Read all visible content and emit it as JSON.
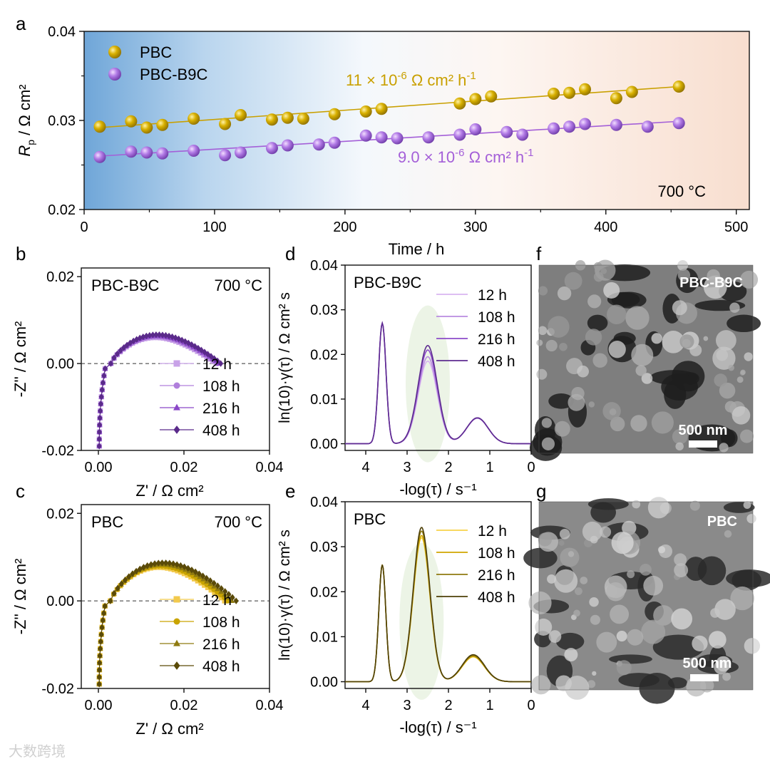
{
  "figure": {
    "watermark": "大数跨境",
    "chart_data": [
      {
        "panel": "a",
        "type": "scatter",
        "xlabel": "Time / h",
        "ylabel_main": "R",
        "ylabel_sub": "p",
        "ylabel_rest": " / Ω cm²",
        "xlim": [
          0,
          510
        ],
        "ylim": [
          0.02,
          0.04
        ],
        "xticks": [
          0,
          100,
          200,
          300,
          400,
          500
        ],
        "xtick_labels": [
          "0",
          "100",
          "200",
          "300",
          "400",
          "500"
        ],
        "yticks": [
          0.02,
          0.03,
          0.04
        ],
        "ytick_labels": [
          "0.02",
          "0.03",
          "0.04"
        ],
        "temperature": "700 °C",
        "legend": [
          "PBC",
          "PBC-B9C"
        ],
        "series": [
          {
            "name": "PBC",
            "color": "#C9A000",
            "slope_pre": "11 × 10",
            "slope_exp": "-6",
            "slope_post": " Ω cm² h",
            "slope_unit_exp": "-1",
            "fit": [
              [
                12,
                0.0292
              ],
              [
                456,
                0.0338
              ]
            ],
            "x": [
              12,
              36,
              48,
              60,
              84,
              108,
              120,
              144,
              156,
              168,
              192,
              216,
              228,
              288,
              300,
              312,
              360,
              372,
              384,
              408,
              420,
              456
            ],
            "y": [
              0.0293,
              0.0299,
              0.0292,
              0.0295,
              0.0302,
              0.0296,
              0.0306,
              0.0301,
              0.0303,
              0.0302,
              0.0307,
              0.031,
              0.0313,
              0.0319,
              0.0324,
              0.0327,
              0.033,
              0.0331,
              0.0335,
              0.0325,
              0.0332,
              0.0338
            ]
          },
          {
            "name": "PBC-B9C",
            "color": "#A45FD8",
            "slope_pre": "9.0 × 10",
            "slope_exp": "-6",
            "slope_post": " Ω cm² h",
            "slope_unit_exp": "-1",
            "fit": [
              [
                12,
                0.026
              ],
              [
                456,
                0.0299
              ]
            ],
            "x": [
              12,
              36,
              48,
              60,
              84,
              108,
              120,
              144,
              156,
              180,
              192,
              216,
              228,
              240,
              264,
              288,
              300,
              324,
              336,
              360,
              372,
              384,
              408,
              432,
              456
            ],
            "y": [
              0.0259,
              0.0265,
              0.0264,
              0.0263,
              0.0266,
              0.0261,
              0.0264,
              0.0269,
              0.0272,
              0.0273,
              0.0275,
              0.0283,
              0.0281,
              0.028,
              0.0281,
              0.0284,
              0.029,
              0.0287,
              0.0284,
              0.0291,
              0.0293,
              0.0296,
              0.0295,
              0.0293,
              0.0297
            ]
          }
        ]
      },
      {
        "panel": "b",
        "type": "scatter",
        "sample": "PBC-B9C",
        "temperature": "700 °C",
        "xlabel": "Z' / Ω cm²",
        "ylabel": "-Z'' / Ω cm²",
        "xlim": [
          -0.004,
          0.04
        ],
        "ylim": [
          -0.02,
          0.022
        ],
        "xticks": [
          0,
          0.02,
          0.04
        ],
        "xtick_labels": [
          "0.00",
          "0.02",
          "0.04"
        ],
        "yticks": [
          -0.02,
          0,
          0.02
        ],
        "ytick_labels": [
          "-0.02",
          "0.00",
          "0.02"
        ],
        "legend": [
          "12 h",
          "108 h",
          "216 h",
          "408 h"
        ],
        "markers": [
          "square",
          "circle",
          "triangle",
          "diamond"
        ],
        "colors": [
          "#C8A2E8",
          "#B07FDC",
          "#8A47C8",
          "#5A2A8A"
        ],
        "arc_params": [
          {
            "r0": 0.0029,
            "rend": 0.0275,
            "h": 0.0064
          },
          {
            "r0": 0.0029,
            "rend": 0.0278,
            "h": 0.0066
          },
          {
            "r0": 0.0029,
            "rend": 0.0282,
            "h": 0.0068
          },
          {
            "r0": 0.0029,
            "rend": 0.0286,
            "h": 0.0071
          }
        ]
      },
      {
        "panel": "c",
        "type": "scatter",
        "sample": "PBC",
        "temperature": "700 °C",
        "xlabel": "Z' / Ω cm²",
        "ylabel": "-Z'' / Ω cm²",
        "xlim": [
          -0.004,
          0.04
        ],
        "ylim": [
          -0.02,
          0.022
        ],
        "xticks": [
          0,
          0.02,
          0.04
        ],
        "xtick_labels": [
          "0.00",
          "0.02",
          "0.04"
        ],
        "yticks": [
          -0.02,
          0,
          0.02
        ],
        "ytick_labels": [
          "-0.02",
          "0.00",
          "0.02"
        ],
        "legend": [
          "12 h",
          "108 h",
          "216 h",
          "408 h"
        ],
        "markers": [
          "square",
          "circle",
          "triangle",
          "diamond"
        ],
        "colors": [
          "#F2C94C",
          "#C9A400",
          "#8F7A10",
          "#5A4A08"
        ],
        "arc_params": [
          {
            "r0": 0.0028,
            "rend": 0.0295,
            "h": 0.0082
          },
          {
            "r0": 0.0028,
            "rend": 0.0302,
            "h": 0.0085
          },
          {
            "r0": 0.0028,
            "rend": 0.0312,
            "h": 0.0089
          },
          {
            "r0": 0.0028,
            "rend": 0.0322,
            "h": 0.0093
          }
        ]
      },
      {
        "panel": "d",
        "type": "line",
        "sample": "PBC-B9C",
        "xlabel": "-log(τ) / s⁻¹",
        "ylabel": "ln(10)·γ(τ) / Ω cm² s",
        "xlim": [
          4.5,
          0
        ],
        "ylim": [
          -0.0015,
          0.04
        ],
        "xticks": [
          4,
          3,
          2,
          1,
          0
        ],
        "xtick_labels": [
          "4",
          "3",
          "2",
          "1",
          "0"
        ],
        "yticks": [
          0,
          0.01,
          0.02,
          0.03,
          0.04
        ],
        "ytick_labels": [
          "0.00",
          "0.01",
          "0.02",
          "0.03",
          "0.04"
        ],
        "legend": [
          "12 h",
          "108 h",
          "216 h",
          "408 h"
        ],
        "colors": [
          "#D8B4F0",
          "#B98BE0",
          "#8C4CC9",
          "#5E2C90"
        ],
        "peaks": [
          {
            "center": 3.6,
            "width": 0.09,
            "heights": [
              0.027,
              0.027,
              0.027,
              0.027
            ]
          },
          {
            "center": 2.5,
            "width": 0.23,
            "heights": [
              0.0185,
              0.0195,
              0.021,
              0.022
            ]
          },
          {
            "center": 1.3,
            "width": 0.26,
            "heights": [
              0.0057,
              0.0057,
              0.0058,
              0.0058
            ]
          }
        ]
      },
      {
        "panel": "e",
        "type": "line",
        "sample": "PBC",
        "xlabel": "-log(τ) / s⁻¹",
        "ylabel": "ln(10)·γ(τ) / Ω cm² s",
        "xlim": [
          4.5,
          0
        ],
        "ylim": [
          -0.0015,
          0.04
        ],
        "xticks": [
          4,
          3,
          2,
          1,
          0
        ],
        "xtick_labels": [
          "4",
          "3",
          "2",
          "1",
          "0"
        ],
        "yticks": [
          0,
          0.01,
          0.02,
          0.03,
          0.04
        ],
        "ytick_labels": [
          "0.00",
          "0.01",
          "0.02",
          "0.03",
          "0.04"
        ],
        "legend": [
          "12 h",
          "108 h",
          "216 h",
          "408 h"
        ],
        "colors": [
          "#F7D34A",
          "#D1A600",
          "#8F7A10",
          "#4E4008"
        ],
        "peaks": [
          {
            "center": 3.6,
            "width": 0.085,
            "heights": [
              0.026,
              0.026,
              0.026,
              0.026
            ]
          },
          {
            "center": 2.65,
            "width": 0.2,
            "heights": [
              0.032,
              0.0325,
              0.0335,
              0.0343
            ]
          },
          {
            "center": 1.4,
            "width": 0.27,
            "heights": [
              0.0055,
              0.0056,
              0.0058,
              0.006
            ]
          }
        ]
      }
    ],
    "sem_images": [
      {
        "panel": "f",
        "label": "PBC-B9C",
        "scale": "500 nm"
      },
      {
        "panel": "g",
        "label": "PBC",
        "scale": "500 nm"
      }
    ]
  }
}
